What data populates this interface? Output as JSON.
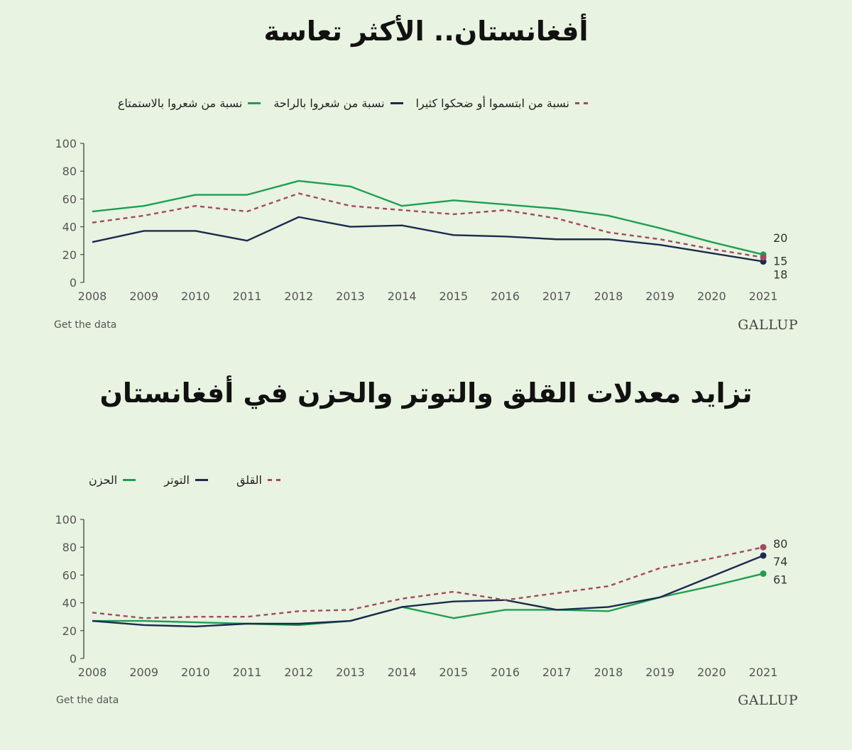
{
  "chart_data": [
    {
      "type": "line",
      "title": "أفغانستان.. الأكثر تعاسة",
      "x": [
        2008,
        2009,
        2010,
        2011,
        2012,
        2013,
        2014,
        2015,
        2016,
        2017,
        2018,
        2019,
        2020,
        2021
      ],
      "ylim": [
        0,
        100
      ],
      "yticks": [
        0,
        20,
        40,
        60,
        80,
        100
      ],
      "grid": false,
      "legend_position": "top",
      "series": [
        {
          "name": "نسبة من شعروا بالاستمتاع",
          "color": "#1f9e52",
          "style": "solid",
          "values": [
            51,
            55,
            63,
            63,
            73,
            69,
            55,
            59,
            56,
            53,
            48,
            39,
            29,
            20
          ],
          "end_label": "20"
        },
        {
          "name": "نسبة من شعروا بالراحة",
          "color": "#1b2a4e",
          "style": "solid",
          "values": [
            29,
            37,
            37,
            30,
            47,
            40,
            41,
            34,
            33,
            31,
            31,
            27,
            21,
            15
          ],
          "end_label": "15"
        },
        {
          "name": "نسبة من ابتسموا أو ضحكوا كثيرا",
          "color": "#a4485f",
          "style": "dashed",
          "values": [
            43,
            48,
            55,
            51,
            64,
            55,
            52,
            49,
            52,
            46,
            36,
            31,
            24,
            18
          ],
          "end_label": "18"
        }
      ],
      "footer_link": "Get the data",
      "source": "GALLUP"
    },
    {
      "type": "line",
      "title": "تزايد معدلات القلق والتوتر والحزن في أفغانستان",
      "x": [
        2008,
        2009,
        2010,
        2011,
        2012,
        2013,
        2014,
        2015,
        2016,
        2017,
        2018,
        2019,
        2020,
        2021
      ],
      "ylim": [
        0,
        100
      ],
      "yticks": [
        0,
        20,
        40,
        60,
        80,
        100
      ],
      "grid": false,
      "legend_position": "top-left",
      "series": [
        {
          "name": "الحزن",
          "color": "#1f9e52",
          "style": "solid",
          "values": [
            27,
            27,
            26,
            25,
            24,
            27,
            37,
            29,
            35,
            35,
            34,
            44,
            52,
            61
          ],
          "end_label": "61"
        },
        {
          "name": "التوتر",
          "color": "#1b2a4e",
          "style": "solid",
          "values": [
            27,
            24,
            23,
            25,
            25,
            27,
            37,
            41,
            42,
            35,
            37,
            44,
            59,
            74
          ],
          "end_label": "74"
        },
        {
          "name": "القلق",
          "color": "#a4485f",
          "style": "dashed",
          "values": [
            33,
            29,
            30,
            30,
            34,
            35,
            43,
            48,
            42,
            47,
            52,
            65,
            72,
            80
          ],
          "end_label": "80"
        }
      ],
      "footer_link": "Get the data",
      "source": "GALLUP"
    }
  ]
}
